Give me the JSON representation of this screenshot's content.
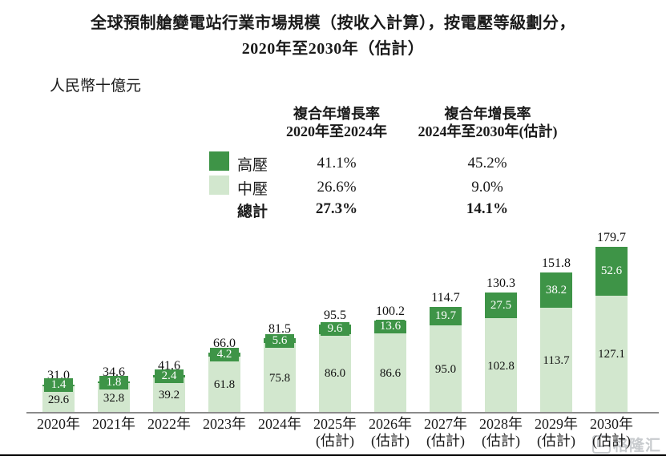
{
  "title": {
    "line1": "全球預制艙變電站行業市場規模（按收入計算），按電壓等級劃分，",
    "line2": "2020年至2030年（估計）"
  },
  "unit_label": "人民幣十億元",
  "cagr_table": {
    "col1_header": "複合年增長率\n2020年至2024年",
    "col2_header": "複合年增長率\n2024年至2030年(估計)",
    "rows": [
      {
        "label": "高壓",
        "swatch": "high_voltage",
        "col1": "41.1%",
        "col2": "45.2%",
        "bold": false
      },
      {
        "label": "中壓",
        "swatch": "mid_voltage",
        "col1": "26.6%",
        "col2": "9.0%",
        "bold": false
      },
      {
        "label": "總計",
        "swatch": null,
        "col1": "27.3%",
        "col2": "14.1%",
        "bold": true
      }
    ]
  },
  "colors": {
    "high_voltage": "#3e9447",
    "mid_voltage": "#d2e7ce",
    "axis": "#8b8b8b",
    "bottom_rule": "#000000",
    "watermark": "#c6c9cc"
  },
  "chart_data": {
    "type": "bar",
    "stacked": true,
    "title": "全球預制艙變電站行業市場規模（按收入計算），按電壓等級劃分，2020年至2030年（估計）",
    "ylabel": "人民幣十億元",
    "categories": [
      "2020年",
      "2021年",
      "2022年",
      "2023年",
      "2024年",
      "2025年",
      "2026年",
      "2027年",
      "2028年",
      "2029年",
      "2030年"
    ],
    "estimate_suffix": "(估計)",
    "estimate_start_index": 5,
    "series": [
      {
        "name": "中壓",
        "color_key": "mid_voltage",
        "values": [
          29.6,
          32.8,
          39.2,
          61.8,
          75.8,
          86.0,
          86.6,
          95.0,
          102.8,
          113.7,
          127.1
        ]
      },
      {
        "name": "高壓",
        "color_key": "high_voltage",
        "values": [
          1.4,
          1.8,
          2.4,
          4.2,
          5.6,
          9.6,
          13.6,
          19.7,
          27.5,
          38.2,
          52.6
        ]
      }
    ],
    "totals": [
      31.0,
      34.6,
      41.6,
      66.0,
      81.5,
      95.5,
      100.2,
      114.7,
      130.3,
      151.8,
      179.7
    ],
    "legend_position": "top",
    "grid": false,
    "ylim": [
      0,
      200
    ]
  },
  "watermark": {
    "text": "格隆汇"
  }
}
